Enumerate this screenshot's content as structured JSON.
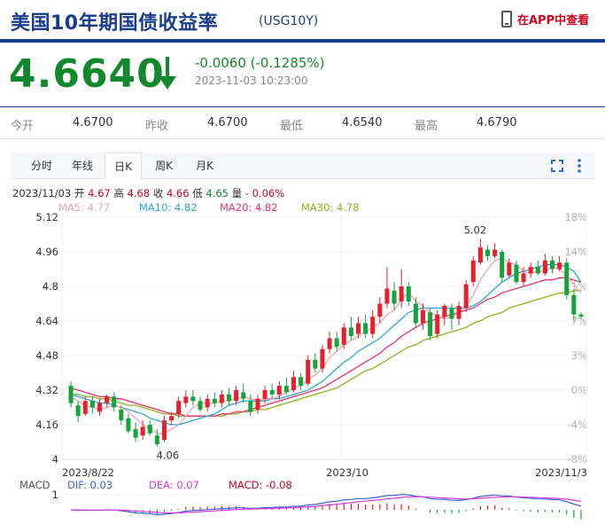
{
  "header": {
    "title": "美国10年期国债收益率",
    "code": "(USG10Y)",
    "app_link": "在APP中查看"
  },
  "quote": {
    "price": "4.6640",
    "change": "-0.0060 (-0.1285%)",
    "time": "2023-11-03 10:23:00",
    "colors": {
      "down": "#12882c",
      "up": "#d0021b",
      "brand": "#1a3e8c"
    }
  },
  "stats": [
    {
      "label": "今开",
      "value": "4.6700"
    },
    {
      "label": "昨收",
      "value": "4.6700"
    },
    {
      "label": "最低",
      "value": "4.6540"
    },
    {
      "label": "最高",
      "value": "4.6790"
    }
  ],
  "tabs": [
    {
      "label": "分时",
      "active": false
    },
    {
      "label": "年线",
      "active": false
    },
    {
      "label": "日K",
      "active": true
    },
    {
      "label": "周K",
      "active": false
    },
    {
      "label": "月K",
      "active": false
    }
  ],
  "ohlc": {
    "date": "2023/11/03",
    "open_label": "开",
    "open": "4.67",
    "high_label": "高",
    "high": "4.68",
    "close_label": "收",
    "close": "4.66",
    "low_label": "低",
    "low": "4.65",
    "vol_label": "量",
    "vol": "- 0.06%"
  },
  "ma_legend": [
    {
      "label": "MA5: 4.77",
      "color": "#f2a0b5"
    },
    {
      "label": "MA10: 4.82",
      "color": "#27a9d6"
    },
    {
      "label": "MA20: 4.82",
      "color": "#e8336b"
    },
    {
      "label": "MA30: 4.78",
      "color": "#8fb320"
    }
  ],
  "macd_legend": [
    {
      "label": "MACD",
      "color": "#555"
    },
    {
      "label": "DIF: 0.03",
      "color": "#3a62d6"
    },
    {
      "label": "DEA: 0.07",
      "color": "#d63ad6"
    },
    {
      "label": "MACD: -0.08",
      "color": "#d0021b"
    }
  ],
  "chart_data": {
    "type": "candlestick",
    "yticks": [
      "5.12",
      "4.96",
      "4.8",
      "4.64",
      "4.48",
      "4.32",
      "4.16",
      "4"
    ],
    "ylim": [
      4.0,
      5.12
    ],
    "pct_ticks": [
      "18%",
      "14%",
      "11%",
      "7%",
      "3%",
      "0%",
      "-4%",
      "-8%"
    ],
    "xlabels": [
      "2023/8/22",
      "2023/10",
      "2023/11/3"
    ],
    "annotations": {
      "high": "5.02",
      "low": "4.06"
    },
    "macd_ytick": "1",
    "candles": [
      [
        4.34,
        4.26,
        4.36,
        4.24
      ],
      [
        4.25,
        4.2,
        4.27,
        4.17
      ],
      [
        4.21,
        4.27,
        4.29,
        4.2
      ],
      [
        4.27,
        4.24,
        4.29,
        4.21
      ],
      [
        4.22,
        4.26,
        4.28,
        4.2
      ],
      [
        4.26,
        4.29,
        4.3,
        4.24
      ],
      [
        4.29,
        4.24,
        4.31,
        4.22
      ],
      [
        4.23,
        4.18,
        4.25,
        4.16
      ],
      [
        4.19,
        4.13,
        4.21,
        4.12
      ],
      [
        4.14,
        4.1,
        4.17,
        4.08
      ],
      [
        4.11,
        4.15,
        4.18,
        4.09
      ],
      [
        4.16,
        4.12,
        4.18,
        4.11
      ],
      [
        4.11,
        4.07,
        4.14,
        4.06
      ],
      [
        4.09,
        4.18,
        4.2,
        4.08
      ],
      [
        4.18,
        4.2,
        4.22,
        4.16
      ],
      [
        4.21,
        4.27,
        4.29,
        4.19
      ],
      [
        4.26,
        4.29,
        4.32,
        4.24
      ],
      [
        4.29,
        4.27,
        4.32,
        4.25
      ],
      [
        4.27,
        4.23,
        4.29,
        4.22
      ],
      [
        4.24,
        4.28,
        4.3,
        4.22
      ],
      [
        4.28,
        4.26,
        4.31,
        4.24
      ],
      [
        4.26,
        4.3,
        4.32,
        4.24
      ],
      [
        4.3,
        4.27,
        4.33,
        4.25
      ],
      [
        4.27,
        4.32,
        4.34,
        4.25
      ],
      [
        4.31,
        4.28,
        4.35,
        4.26
      ],
      [
        4.27,
        4.22,
        4.3,
        4.2
      ],
      [
        4.23,
        4.28,
        4.3,
        4.21
      ],
      [
        4.28,
        4.32,
        4.34,
        4.26
      ],
      [
        4.32,
        4.3,
        4.35,
        4.28
      ],
      [
        4.3,
        4.34,
        4.36,
        4.28
      ],
      [
        4.34,
        4.31,
        4.38,
        4.3
      ],
      [
        4.32,
        4.38,
        4.41,
        4.31
      ],
      [
        4.38,
        4.34,
        4.4,
        4.32
      ],
      [
        4.35,
        4.46,
        4.48,
        4.34
      ],
      [
        4.46,
        4.42,
        4.49,
        4.4
      ],
      [
        4.42,
        4.51,
        4.53,
        4.4
      ],
      [
        4.51,
        4.56,
        4.59,
        4.49
      ],
      [
        4.56,
        4.52,
        4.59,
        4.5
      ],
      [
        4.53,
        4.61,
        4.63,
        4.51
      ],
      [
        4.61,
        4.57,
        4.66,
        4.55
      ],
      [
        4.58,
        4.63,
        4.66,
        4.56
      ],
      [
        4.63,
        4.58,
        4.67,
        4.56
      ],
      [
        4.58,
        4.66,
        4.69,
        4.56
      ],
      [
        4.66,
        4.72,
        4.75,
        4.63
      ],
      [
        4.72,
        4.79,
        4.89,
        4.7
      ],
      [
        4.78,
        4.72,
        4.82,
        4.69
      ],
      [
        4.73,
        4.8,
        4.88,
        4.7
      ],
      [
        4.8,
        4.73,
        4.82,
        4.71
      ],
      [
        4.72,
        4.63,
        4.75,
        4.61
      ],
      [
        4.63,
        4.69,
        4.72,
        4.6
      ],
      [
        4.68,
        4.57,
        4.7,
        4.55
      ],
      [
        4.58,
        4.67,
        4.69,
        4.56
      ],
      [
        4.66,
        4.71,
        4.72,
        4.62
      ],
      [
        4.7,
        4.65,
        4.72,
        4.6
      ],
      [
        4.65,
        4.71,
        4.73,
        4.62
      ],
      [
        4.7,
        4.81,
        4.83,
        4.68
      ],
      [
        4.82,
        4.92,
        4.94,
        4.8
      ],
      [
        4.91,
        4.98,
        5.02,
        4.9
      ],
      [
        4.97,
        4.94,
        4.99,
        4.92
      ],
      [
        4.94,
        4.97,
        5.0,
        4.93
      ],
      [
        4.96,
        4.84,
        4.97,
        4.82
      ],
      [
        4.85,
        4.91,
        4.93,
        4.84
      ],
      [
        4.9,
        4.82,
        4.92,
        4.81
      ],
      [
        4.82,
        4.86,
        4.89,
        4.8
      ],
      [
        4.86,
        4.89,
        4.91,
        4.84
      ],
      [
        4.89,
        4.86,
        4.92,
        4.85
      ],
      [
        4.86,
        4.92,
        4.95,
        4.85
      ],
      [
        4.92,
        4.88,
        4.94,
        4.86
      ],
      [
        4.88,
        4.91,
        4.94,
        4.87
      ],
      [
        4.91,
        4.76,
        4.93,
        4.74
      ],
      [
        4.76,
        4.67,
        4.78,
        4.64
      ],
      [
        4.67,
        4.66,
        4.68,
        4.65
      ]
    ],
    "ma5": [
      4.29,
      4.27,
      4.25,
      4.24,
      4.23,
      4.24,
      4.25,
      4.24,
      4.22,
      4.19,
      4.16,
      4.14,
      4.12,
      4.12,
      4.14,
      4.16,
      4.2,
      4.24,
      4.26,
      4.26,
      4.26,
      4.27,
      4.27,
      4.28,
      4.29,
      4.28,
      4.27,
      4.28,
      4.28,
      4.29,
      4.31,
      4.33,
      4.34,
      4.37,
      4.39,
      4.42,
      4.47,
      4.5,
      4.53,
      4.55,
      4.57,
      4.59,
      4.61,
      4.63,
      4.67,
      4.69,
      4.74,
      4.77,
      4.73,
      4.71,
      4.68,
      4.66,
      4.65,
      4.66,
      4.68,
      4.71,
      4.76,
      4.83,
      4.88,
      4.92,
      4.93,
      4.91,
      4.9,
      4.87,
      4.86,
      4.87,
      4.87,
      4.89,
      4.88,
      4.85,
      4.81,
      4.77
    ],
    "ma10": [
      4.3,
      4.29,
      4.28,
      4.27,
      4.26,
      4.26,
      4.25,
      4.24,
      4.23,
      4.22,
      4.21,
      4.19,
      4.18,
      4.17,
      4.16,
      4.16,
      4.17,
      4.18,
      4.19,
      4.2,
      4.21,
      4.23,
      4.25,
      4.26,
      4.27,
      4.27,
      4.27,
      4.27,
      4.28,
      4.28,
      4.29,
      4.3,
      4.31,
      4.32,
      4.34,
      4.36,
      4.39,
      4.42,
      4.45,
      4.47,
      4.5,
      4.52,
      4.54,
      4.56,
      4.59,
      4.62,
      4.65,
      4.68,
      4.69,
      4.7,
      4.7,
      4.7,
      4.7,
      4.7,
      4.7,
      4.7,
      4.71,
      4.73,
      4.76,
      4.79,
      4.82,
      4.84,
      4.86,
      4.87,
      4.88,
      4.89,
      4.9,
      4.9,
      4.9,
      4.89,
      4.87,
      4.82
    ],
    "ma20": [
      4.33,
      4.32,
      4.31,
      4.3,
      4.29,
      4.29,
      4.28,
      4.28,
      4.27,
      4.26,
      4.25,
      4.24,
      4.23,
      4.22,
      4.21,
      4.21,
      4.2,
      4.2,
      4.2,
      4.2,
      4.2,
      4.21,
      4.21,
      4.22,
      4.22,
      4.23,
      4.24,
      4.25,
      4.26,
      4.27,
      4.28,
      4.29,
      4.3,
      4.31,
      4.32,
      4.33,
      4.35,
      4.37,
      4.39,
      4.41,
      4.43,
      4.45,
      4.47,
      4.49,
      4.52,
      4.54,
      4.57,
      4.59,
      4.61,
      4.63,
      4.64,
      4.65,
      4.66,
      4.67,
      4.68,
      4.69,
      4.7,
      4.72,
      4.74,
      4.75,
      4.77,
      4.78,
      4.79,
      4.8,
      4.81,
      4.82,
      4.83,
      4.83,
      4.84,
      4.84,
      4.83,
      4.82
    ],
    "ma30": [
      4.3,
      4.3,
      4.29,
      4.29,
      4.28,
      4.28,
      4.27,
      4.26,
      4.25,
      4.25,
      4.24,
      4.23,
      4.22,
      4.21,
      4.21,
      4.2,
      4.2,
      4.2,
      4.2,
      4.2,
      4.2,
      4.2,
      4.21,
      4.21,
      4.22,
      4.22,
      4.23,
      4.23,
      4.24,
      4.25,
      4.26,
      4.27,
      4.28,
      4.29,
      4.3,
      4.31,
      4.32,
      4.33,
      4.35,
      4.37,
      4.39,
      4.41,
      4.42,
      4.44,
      4.46,
      4.48,
      4.5,
      4.52,
      4.53,
      4.55,
      4.56,
      4.57,
      4.58,
      4.59,
      4.6,
      4.61,
      4.63,
      4.64,
      4.66,
      4.67,
      4.68,
      4.7,
      4.71,
      4.72,
      4.73,
      4.74,
      4.75,
      4.76,
      4.77,
      4.77,
      4.78,
      4.78
    ]
  }
}
